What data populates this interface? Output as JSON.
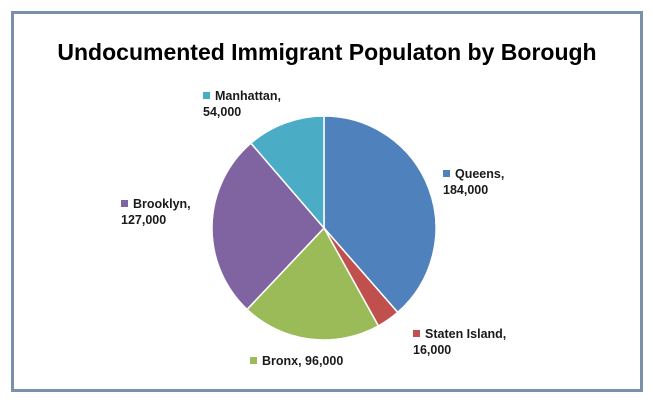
{
  "chart_data": {
    "type": "pie",
    "title": "Undocumented Immigrant Populaton by Borough",
    "slices": [
      {
        "name": "Queens",
        "value": 184000,
        "label_name": "Queens,",
        "label_value": "184,000",
        "color": "#4f81bd"
      },
      {
        "name": "Staten Island",
        "value": 16000,
        "label_name": "Staten Island,",
        "label_value": "16,000",
        "color": "#c0504d"
      },
      {
        "name": "Bronx",
        "value": 96000,
        "label_name": "Bronx, 96,000",
        "label_value": "",
        "color": "#9bbb59"
      },
      {
        "name": "Brooklyn",
        "value": 127000,
        "label_name": "Brooklyn,",
        "label_value": "127,000",
        "color": "#8064a2"
      },
      {
        "name": "Manhattan",
        "value": 54000,
        "label_name": "Manhattan,",
        "label_value": "54,000",
        "color": "#4bacc6"
      }
    ],
    "legend": "none",
    "start_angle": "12 o'clock",
    "direction": "clockwise"
  }
}
